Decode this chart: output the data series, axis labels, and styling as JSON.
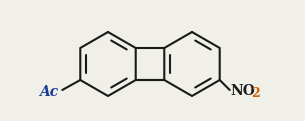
{
  "bg_color": "#f0efe8",
  "bond_color": "#1a1a1a",
  "line_width": 1.5,
  "r1cx": 0.335,
  "r1cy": 0.52,
  "r2cx": 0.595,
  "r2cy": 0.52,
  "ring_r": 0.21,
  "label_ac": "Ac",
  "ac_color": "#1a3a9a",
  "no_color": "#1a1a1a",
  "two_color": "#cc6600",
  "font_size": 10
}
